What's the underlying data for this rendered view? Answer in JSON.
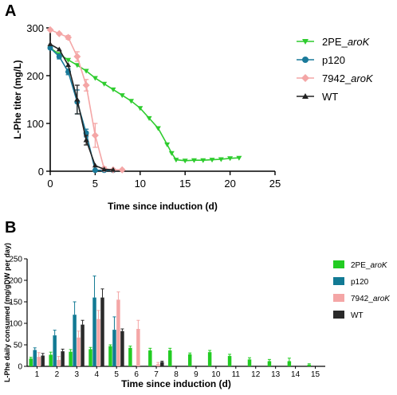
{
  "chart_data": [
    {
      "panel": "A",
      "type": "line",
      "xlabel": "Time since induction (d)",
      "ylabel": "L-Phe titer (mg/L)",
      "xlim": [
        0,
        25
      ],
      "ylim": [
        0,
        300
      ],
      "xticks": [
        "0",
        "5",
        "10",
        "15",
        "20",
        "25"
      ],
      "yticks": [
        "0",
        "100",
        "200",
        "300"
      ],
      "legend_position": "right",
      "series": [
        {
          "name": "2PE_",
          "name_italic": "aroK",
          "color": "#2ecc2e",
          "marker": "triangle-down",
          "points": [
            [
              0,
              258
            ],
            [
              1,
              245
            ],
            [
              2,
              233
            ],
            [
              3,
              222
            ],
            [
              4,
              210
            ],
            [
              5,
              195
            ],
            [
              6,
              183
            ],
            [
              7,
              171
            ],
            [
              8,
              159
            ],
            [
              9,
              147
            ],
            [
              10,
              132
            ],
            [
              11,
              111
            ],
            [
              12,
              90
            ],
            [
              13,
              56
            ],
            [
              13.5,
              38
            ],
            [
              14,
              24
            ],
            [
              15,
              22
            ],
            [
              16,
              23
            ],
            [
              17,
              23
            ],
            [
              18,
              24
            ],
            [
              19,
              25
            ],
            [
              20,
              27
            ],
            [
              21,
              28
            ]
          ]
        },
        {
          "name": "p120",
          "name_italic": "",
          "color": "#1a7a9a",
          "marker": "circle",
          "points": [
            [
              0,
              258
            ],
            [
              1,
              240
            ],
            [
              2,
              208
            ],
            [
              3,
              145
            ],
            [
              4,
              80
            ],
            [
              5,
              2
            ],
            [
              6,
              2
            ],
            [
              7,
              2
            ]
          ]
        },
        {
          "name": "7942_",
          "name_italic": "aroK",
          "color": "#f4a6a6",
          "marker": "diamond",
          "points": [
            [
              0,
              296
            ],
            [
              1,
              288
            ],
            [
              2,
              280
            ],
            [
              3,
              240
            ],
            [
              4,
              180
            ],
            [
              5,
              75
            ],
            [
              6,
              5
            ],
            [
              7,
              3
            ],
            [
              8,
              3
            ]
          ]
        },
        {
          "name": "WT",
          "name_italic": "",
          "color": "#222222",
          "marker": "triangle-up",
          "points": [
            [
              0,
              266
            ],
            [
              1,
              255
            ],
            [
              2,
              222
            ],
            [
              3,
              150
            ],
            [
              4,
              65
            ],
            [
              5,
              12
            ],
            [
              6,
              4
            ],
            [
              7,
              3
            ]
          ]
        }
      ]
    },
    {
      "panel": "B",
      "type": "bar",
      "xlabel": "Time since induction (d)",
      "ylabel": "L-Phe daily consumed (mg/gDW per day)",
      "ylim": [
        0,
        250
      ],
      "yticks": [
        "0",
        "50",
        "100",
        "150",
        "200",
        "250"
      ],
      "categories": [
        "1",
        "2",
        "3",
        "4",
        "5",
        "6",
        "7",
        "8",
        "9",
        "10",
        "11",
        "12",
        "13",
        "14",
        "15"
      ],
      "legend_position": "right",
      "series": [
        {
          "name": "2PE_",
          "name_italic": "aroK",
          "color": "#22cc22",
          "values": [
            18,
            27,
            34,
            40,
            47,
            43,
            37,
            37,
            28,
            33,
            24,
            16,
            12,
            12,
            4
          ],
          "errors": [
            3,
            6,
            5,
            4,
            3,
            4,
            5,
            5,
            3,
            4,
            4,
            4,
            4,
            7,
            2
          ]
        },
        {
          "name": "p120",
          "name_italic": "",
          "color": "#127a94",
          "values": [
            38,
            72,
            120,
            160,
            85,
            null,
            null,
            null,
            null,
            null,
            null,
            null,
            null,
            null,
            null
          ],
          "errors": [
            5,
            12,
            30,
            50,
            30,
            null,
            null,
            null,
            null,
            null,
            null,
            null,
            null,
            null,
            null
          ]
        },
        {
          "name": "7942_",
          "name_italic": "aroK",
          "color": "#f4a6a6",
          "values": [
            22,
            15,
            67,
            110,
            155,
            87,
            5,
            null,
            null,
            null,
            null,
            null,
            null,
            null,
            null
          ],
          "errors": [
            10,
            8,
            15,
            20,
            18,
            20,
            4,
            null,
            null,
            null,
            null,
            null,
            null,
            null,
            null
          ]
        },
        {
          "name": "WT",
          "name_italic": "",
          "color": "#2a2a2a",
          "values": [
            25,
            35,
            97,
            160,
            82,
            null,
            10,
            null,
            null,
            null,
            null,
            null,
            null,
            null,
            null
          ],
          "errors": [
            5,
            5,
            10,
            20,
            5,
            null,
            2,
            null,
            null,
            null,
            null,
            null,
            null,
            null,
            null
          ]
        }
      ]
    }
  ]
}
